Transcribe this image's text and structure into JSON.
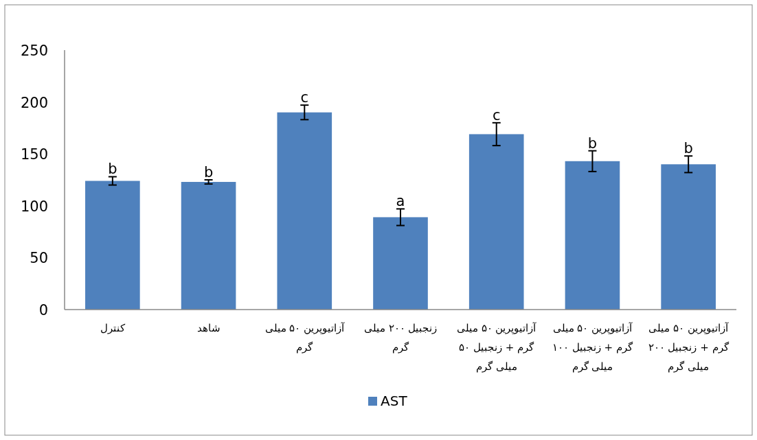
{
  "chart_data": {
    "type": "bar",
    "categories": [
      "کنترل",
      "شاهد",
      "آزاتیوپرین ۵۰ میلی گرم",
      "زنجبیل ۲۰۰ میلی گرم",
      "آزاتیوپرین ۵۰ میلی گرم + زنجبیل ۵۰ میلی گرم",
      "آزاتیوپرین ۵۰ میلی گرم + زنجبیل ۱۰۰ میلی گرم",
      "آزاتیوپرین ۵۰ میلی گرم + زنجبیل ۲۰۰ میلی گرم"
    ],
    "series": [
      {
        "name": "AST",
        "color": "#4f81bd",
        "values": [
          124,
          123,
          190,
          89,
          169,
          143,
          140
        ],
        "errors": [
          4,
          2,
          7,
          8,
          11,
          10,
          8
        ]
      }
    ],
    "ylim": [
      0,
      250
    ],
    "yticks": [
      0,
      50,
      100,
      150,
      200,
      250
    ],
    "grid": false,
    "legend": "bottom",
    "annotations": [
      {
        "text": "b",
        "x": "کنترل",
        "y": 128
      },
      {
        "text": "b",
        "x": "شاهد",
        "y": 125
      },
      {
        "text": "c",
        "x": "آزاتیوپرین ۵۰ میلی گرم",
        "y": 197
      },
      {
        "text": "a",
        "x": "زنجبیل ۲۰۰ میلی گرم",
        "y": 97
      },
      {
        "text": "c",
        "x": "آزاتیوپرین ۵۰ میلی گرم + زنجبیل ۵۰ میلی گرم",
        "y": 180
      },
      {
        "text": "b",
        "x": "آزاتیوپرین ۵۰ میلی گرم + زنجبیل ۱۰۰ میلی گرم",
        "y": 153
      },
      {
        "text": "b",
        "x": "آزاتیوپرین ۵۰ میلی گرم + زنجبیل ۲۰۰ میلی گرم",
        "y": 148
      }
    ]
  }
}
